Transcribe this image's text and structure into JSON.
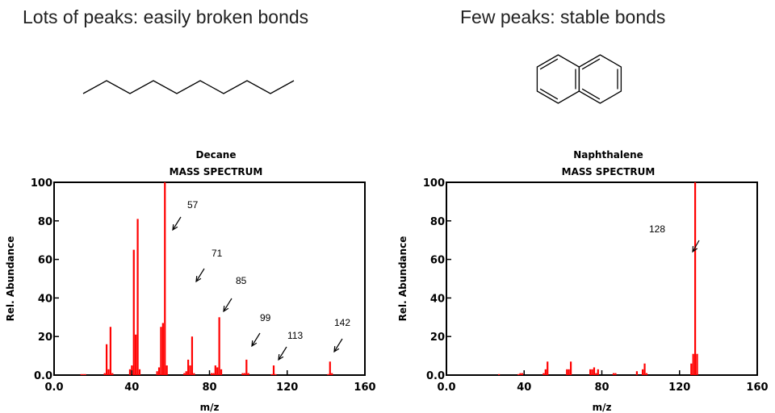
{
  "headings": {
    "left": "Lots of peaks: easily broken bonds",
    "right": "Few peaks: stable bonds"
  },
  "molecules": {
    "left": "decane-skeletal-structure",
    "right": "naphthalene-skeletal-structure"
  },
  "colors": {
    "peak": "#ff0000",
    "axis": "#000000",
    "arrow": "#000000"
  },
  "chart_data": [
    {
      "type": "bar",
      "title": "Decane",
      "subtitle": "MASS SPECTRUM",
      "xlabel": "m/z",
      "ylabel": "Rel. Abundance",
      "xlim": [
        0,
        160
      ],
      "ylim": [
        0,
        100
      ],
      "xticks": [
        "0.0",
        "40",
        "80",
        "120",
        "160"
      ],
      "yticks": [
        "0.0",
        "20",
        "40",
        "60",
        "80",
        "100"
      ],
      "grid": false,
      "x": [
        14,
        15,
        16,
        26,
        27,
        28,
        29,
        30,
        39,
        40,
        41,
        42,
        43,
        44,
        53,
        54,
        55,
        56,
        57,
        58,
        67,
        68,
        69,
        70,
        71,
        72,
        81,
        82,
        83,
        84,
        85,
        86,
        97,
        98,
        99,
        100,
        112,
        113,
        114,
        141,
        142,
        143
      ],
      "values": [
        0.5,
        0.5,
        0.5,
        1,
        16,
        3,
        25,
        1,
        3,
        5,
        65,
        21,
        81,
        3,
        2,
        4,
        25,
        27,
        100,
        5,
        1,
        2,
        8,
        5,
        20,
        1,
        1,
        1,
        5,
        4,
        30,
        3,
        1,
        1,
        8,
        1,
        0.5,
        5,
        0.5,
        0.5,
        7,
        1
      ],
      "annotations": [
        {
          "text": "57",
          "x": 57,
          "y": 100
        },
        {
          "text": "71",
          "x": 71,
          "y": 20
        },
        {
          "text": "85",
          "x": 85,
          "y": 30
        },
        {
          "text": "99",
          "x": 99,
          "y": 8
        },
        {
          "text": "113",
          "x": 113,
          "y": 5
        },
        {
          "text": "142",
          "x": 142,
          "y": 7
        }
      ]
    },
    {
      "type": "bar",
      "title": "Naphthalene",
      "subtitle": "MASS SPECTRUM",
      "xlabel": "m/z",
      "ylabel": "Rel. Abundance",
      "xlim": [
        0,
        160
      ],
      "ylim": [
        0,
        100
      ],
      "xticks": [
        "0.0",
        "40",
        "80",
        "120",
        "160"
      ],
      "yticks": [
        "0.0",
        "20",
        "40",
        "60",
        "80",
        "100"
      ],
      "grid": false,
      "x": [
        27,
        37,
        38,
        39,
        50,
        51,
        52,
        62,
        63,
        64,
        74,
        75,
        76,
        77,
        78,
        86,
        87,
        98,
        101,
        102,
        103,
        126,
        127,
        128,
        129
      ],
      "values": [
        0.5,
        0.5,
        1,
        1,
        1,
        3,
        7,
        3,
        3,
        7,
        3,
        3,
        4,
        1,
        3,
        1,
        1,
        2,
        3,
        6,
        1,
        6,
        11,
        100,
        11
      ],
      "annotations": [
        {
          "text": "128",
          "x": 128,
          "y": 62
        }
      ]
    }
  ]
}
